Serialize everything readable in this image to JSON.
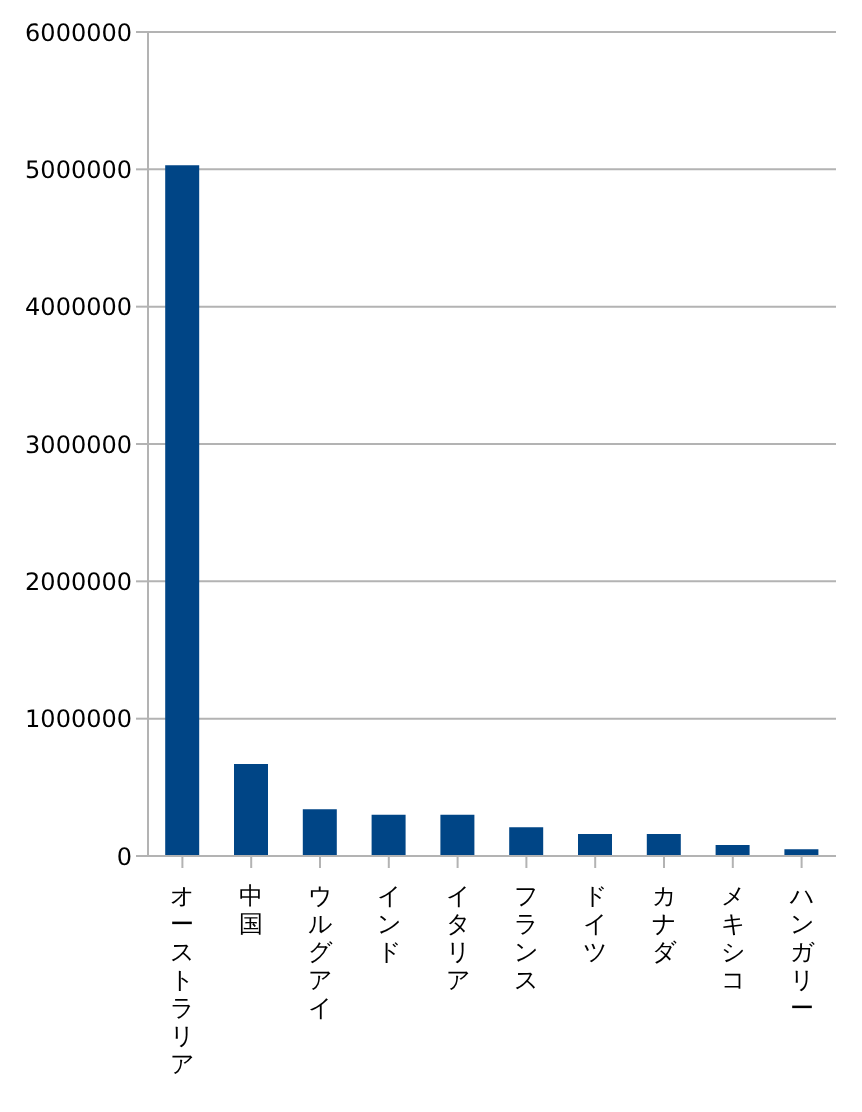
{
  "chart_data": {
    "type": "bar",
    "categories": [
      "オーストラリア",
      "中国",
      "ウルグアイ",
      "インド",
      "イタリア",
      "フランス",
      "ドイツ",
      "カナダ",
      "メキシコ",
      "ハンガリー"
    ],
    "values": [
      5030000,
      670000,
      340000,
      300000,
      300000,
      210000,
      160000,
      160000,
      80000,
      50000
    ],
    "color": "#004586",
    "ylim": [
      0,
      6000000
    ],
    "yticks": [
      0,
      1000000,
      2000000,
      3000000,
      4000000,
      5000000,
      6000000
    ],
    "grid": "y"
  }
}
